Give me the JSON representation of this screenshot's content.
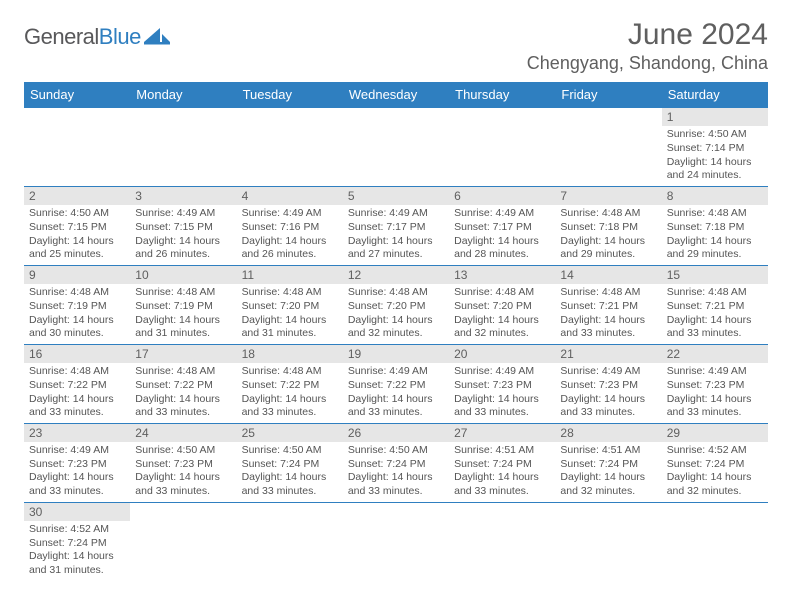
{
  "logo": {
    "part1": "General",
    "part2": "Blue"
  },
  "title": "June 2024",
  "location": "Chengyang, Shandong, China",
  "weekdays": [
    "Sunday",
    "Monday",
    "Tuesday",
    "Wednesday",
    "Thursday",
    "Friday",
    "Saturday"
  ],
  "colors": {
    "header_bg": "#2f7fc0",
    "header_text": "#ffffff",
    "daynum_bg": "#e6e6e6",
    "text": "#5f5f5f",
    "rule": "#2f7fc0"
  },
  "layout": {
    "first_weekday_index": 6,
    "weeks": 6
  },
  "days": [
    {
      "n": 1,
      "sunrise": "4:50 AM",
      "sunset": "7:14 PM",
      "daylight": "14 hours and 24 minutes."
    },
    {
      "n": 2,
      "sunrise": "4:50 AM",
      "sunset": "7:15 PM",
      "daylight": "14 hours and 25 minutes."
    },
    {
      "n": 3,
      "sunrise": "4:49 AM",
      "sunset": "7:15 PM",
      "daylight": "14 hours and 26 minutes."
    },
    {
      "n": 4,
      "sunrise": "4:49 AM",
      "sunset": "7:16 PM",
      "daylight": "14 hours and 26 minutes."
    },
    {
      "n": 5,
      "sunrise": "4:49 AM",
      "sunset": "7:17 PM",
      "daylight": "14 hours and 27 minutes."
    },
    {
      "n": 6,
      "sunrise": "4:49 AM",
      "sunset": "7:17 PM",
      "daylight": "14 hours and 28 minutes."
    },
    {
      "n": 7,
      "sunrise": "4:48 AM",
      "sunset": "7:18 PM",
      "daylight": "14 hours and 29 minutes."
    },
    {
      "n": 8,
      "sunrise": "4:48 AM",
      "sunset": "7:18 PM",
      "daylight": "14 hours and 29 minutes."
    },
    {
      "n": 9,
      "sunrise": "4:48 AM",
      "sunset": "7:19 PM",
      "daylight": "14 hours and 30 minutes."
    },
    {
      "n": 10,
      "sunrise": "4:48 AM",
      "sunset": "7:19 PM",
      "daylight": "14 hours and 31 minutes."
    },
    {
      "n": 11,
      "sunrise": "4:48 AM",
      "sunset": "7:20 PM",
      "daylight": "14 hours and 31 minutes."
    },
    {
      "n": 12,
      "sunrise": "4:48 AM",
      "sunset": "7:20 PM",
      "daylight": "14 hours and 32 minutes."
    },
    {
      "n": 13,
      "sunrise": "4:48 AM",
      "sunset": "7:20 PM",
      "daylight": "14 hours and 32 minutes."
    },
    {
      "n": 14,
      "sunrise": "4:48 AM",
      "sunset": "7:21 PM",
      "daylight": "14 hours and 33 minutes."
    },
    {
      "n": 15,
      "sunrise": "4:48 AM",
      "sunset": "7:21 PM",
      "daylight": "14 hours and 33 minutes."
    },
    {
      "n": 16,
      "sunrise": "4:48 AM",
      "sunset": "7:22 PM",
      "daylight": "14 hours and 33 minutes."
    },
    {
      "n": 17,
      "sunrise": "4:48 AM",
      "sunset": "7:22 PM",
      "daylight": "14 hours and 33 minutes."
    },
    {
      "n": 18,
      "sunrise": "4:48 AM",
      "sunset": "7:22 PM",
      "daylight": "14 hours and 33 minutes."
    },
    {
      "n": 19,
      "sunrise": "4:49 AM",
      "sunset": "7:22 PM",
      "daylight": "14 hours and 33 minutes."
    },
    {
      "n": 20,
      "sunrise": "4:49 AM",
      "sunset": "7:23 PM",
      "daylight": "14 hours and 33 minutes."
    },
    {
      "n": 21,
      "sunrise": "4:49 AM",
      "sunset": "7:23 PM",
      "daylight": "14 hours and 33 minutes."
    },
    {
      "n": 22,
      "sunrise": "4:49 AM",
      "sunset": "7:23 PM",
      "daylight": "14 hours and 33 minutes."
    },
    {
      "n": 23,
      "sunrise": "4:49 AM",
      "sunset": "7:23 PM",
      "daylight": "14 hours and 33 minutes."
    },
    {
      "n": 24,
      "sunrise": "4:50 AM",
      "sunset": "7:23 PM",
      "daylight": "14 hours and 33 minutes."
    },
    {
      "n": 25,
      "sunrise": "4:50 AM",
      "sunset": "7:24 PM",
      "daylight": "14 hours and 33 minutes."
    },
    {
      "n": 26,
      "sunrise": "4:50 AM",
      "sunset": "7:24 PM",
      "daylight": "14 hours and 33 minutes."
    },
    {
      "n": 27,
      "sunrise": "4:51 AM",
      "sunset": "7:24 PM",
      "daylight": "14 hours and 33 minutes."
    },
    {
      "n": 28,
      "sunrise": "4:51 AM",
      "sunset": "7:24 PM",
      "daylight": "14 hours and 32 minutes."
    },
    {
      "n": 29,
      "sunrise": "4:52 AM",
      "sunset": "7:24 PM",
      "daylight": "14 hours and 32 minutes."
    },
    {
      "n": 30,
      "sunrise": "4:52 AM",
      "sunset": "7:24 PM",
      "daylight": "14 hours and 31 minutes."
    }
  ]
}
